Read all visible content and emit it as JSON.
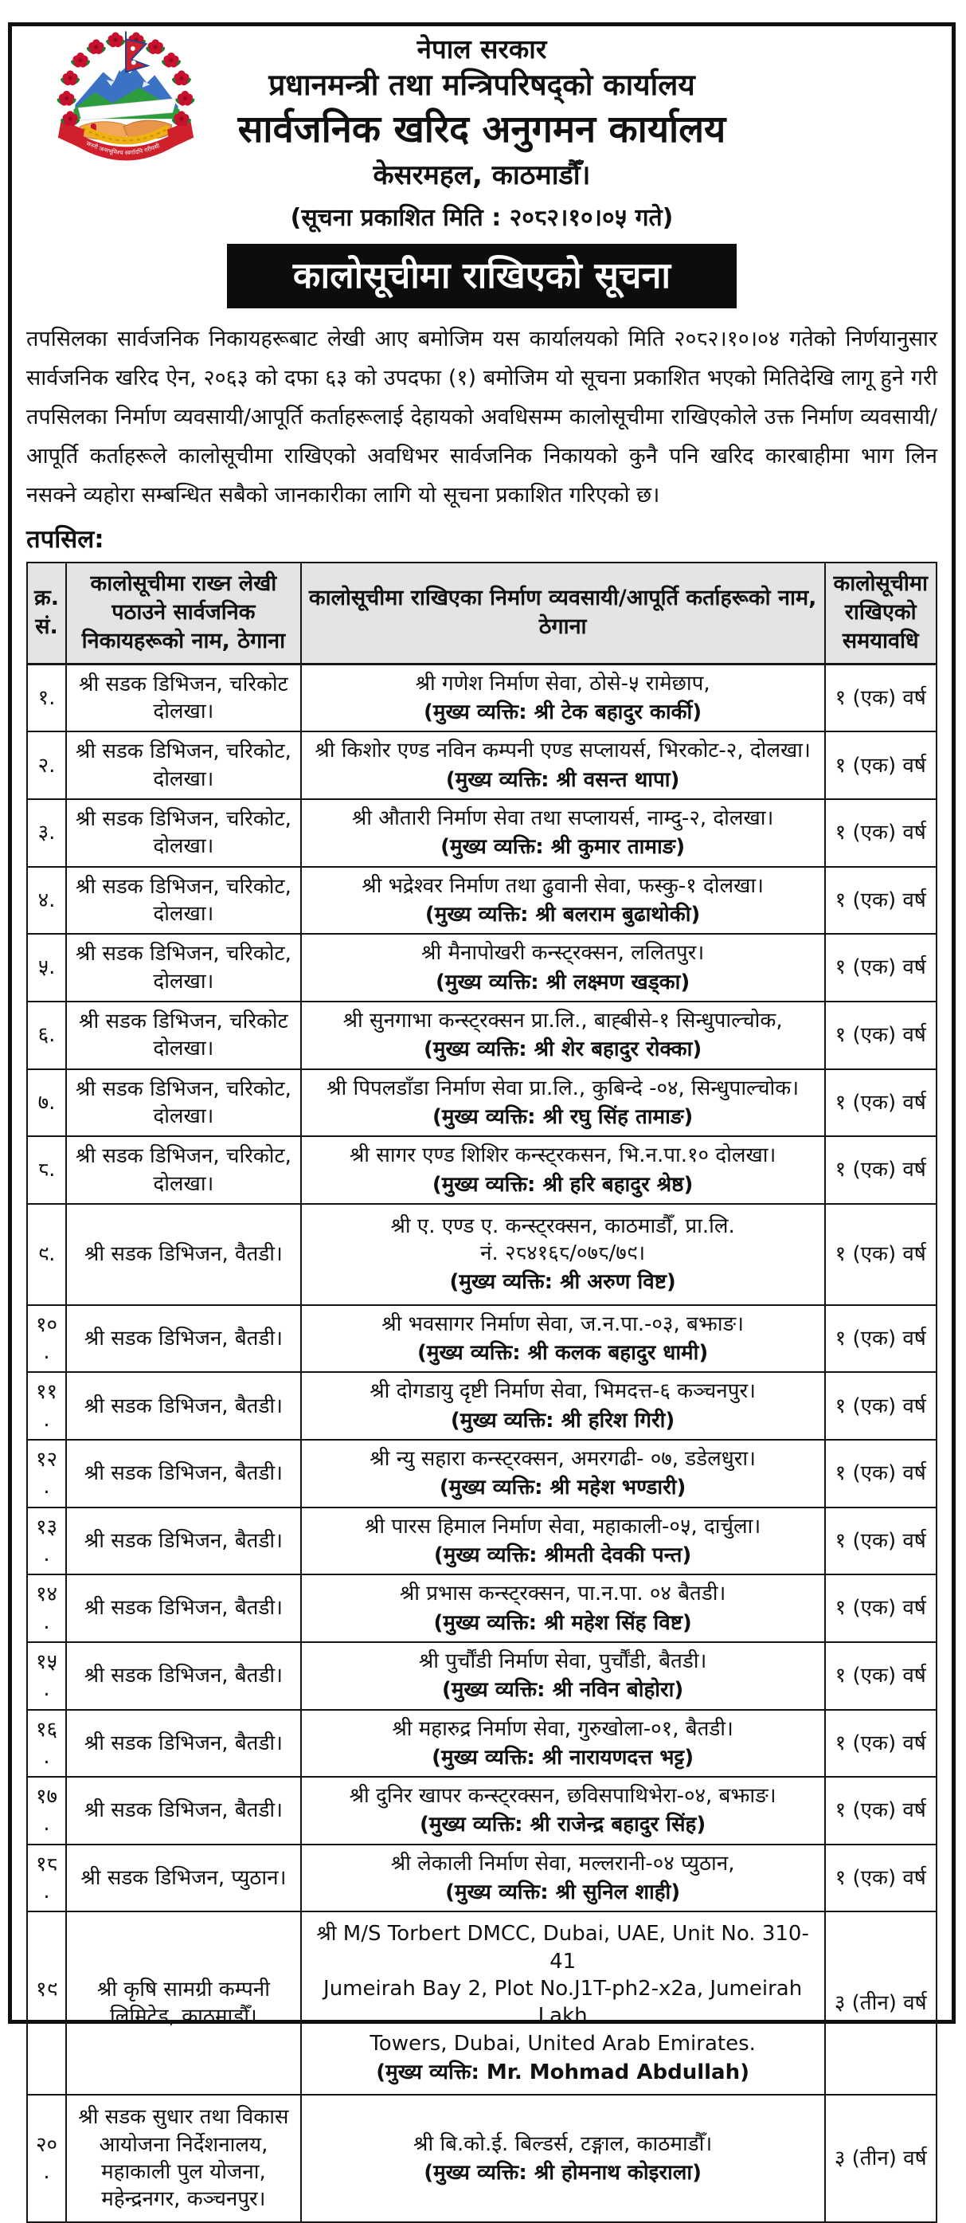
{
  "header": {
    "government": "नेपाल सरकार",
    "office_parent": "प्रधानमन्त्री तथा मन्त्रिपरिषद्को कार्यालय",
    "office": "सार्वजनिक खरिद अनुगमन कार्यालय",
    "address": "केसरमहल, काठमाडौँ।",
    "published_date_line": "(सूचना प्रकाशित मिति : २०८२।१०।०५ गते)",
    "emblem_motto": "जननी जन्मभूमिश्च स्वर्गादपि गरीयसी"
  },
  "notice": {
    "title": "कालोसूचीमा राखिएको सूचना",
    "body": "तपसिलका सार्वजनिक निकायहरूबाट लेखी आए बमोजिम यस कार्यालयको मिति २०८२।१०।०४ गतेको निर्णयानुसार सार्वजनिक खरिद ऐन, २०६३ को दफा ६३ को उपदफा (१) बमोजिम यो सूचना प्रकाशित भएको मितिदेखि लागू हुने गरी तपसिलका निर्माण व्यवसायी/आपूर्ति कर्ताहरूलाई देहायको अवधिसम्म कालोसूचीमा राखिएकोले उक्त निर्माण व्यवसायी/आपूर्ति कर्ताहरूले कालोसूचीमा राखिएको अवधिभर सार्वजनिक निकायको कुनै पनि खरिद कारबाहीमा भाग लिन नसक्ने व्यहोरा सम्बन्धित सबैको जानकारीका लागि यो सूचना प्रकाशित गरिएको छ।",
    "detail_label": "तपसिल:"
  },
  "table": {
    "headers": {
      "sn": "क्र. सं.",
      "agency": "कालोसूचीमा राख्न लेखी पठाउने सार्वजनिक निकायहरूको नाम, ठेगाना",
      "firm": "कालोसूचीमा राखिएका निर्माण व्यवसायी/आपूर्ति कर्ताहरूको नाम, ठेगाना",
      "duration": "कालोसूचीमा राखिएको समयावधि"
    },
    "rows": [
      {
        "sn": "१.",
        "agency": "श्री सडक डिभिजन, चरिकोट दोलखा।",
        "firm_lines": [
          "श्री गणेश निर्माण सेवा, ठोसे-५ रामेछाप,"
        ],
        "key_person": "(मुख्य व्यक्ति: श्री टेक बहादुर कार्की)",
        "duration": "१ (एक) वर्ष",
        "tall": false
      },
      {
        "sn": "२.",
        "agency": "श्री सडक डिभिजन, चरिकोट, दोलखा।",
        "firm_lines": [
          "श्री किशोर एण्ड नविन कम्पनी एण्ड सप्लायर्स, भिरकोट-२, दोलखा।"
        ],
        "key_person": "(मुख्य व्यक्ति: श्री वसन्त थापा)",
        "duration": "१ (एक) वर्ष",
        "tall": false
      },
      {
        "sn": "३.",
        "agency": "श्री सडक डिभिजन, चरिकोट, दोलखा।",
        "firm_lines": [
          "श्री औतारी निर्माण सेवा तथा सप्लायर्स, नाम्दु-२, दोलखा।"
        ],
        "key_person": "(मुख्य व्यक्ति: श्री कुमार तामाङ)",
        "duration": "१ (एक) वर्ष",
        "tall": false
      },
      {
        "sn": "४.",
        "agency": "श्री सडक डिभिजन, चरिकोट, दोलखा।",
        "firm_lines": [
          "श्री भद्रेश्वर निर्माण तथा ढुवानी सेवा, फस्कु-१ दोलखा।"
        ],
        "key_person": "(मुख्य व्यक्ति: श्री बलराम बुढाथोकी)",
        "duration": "१ (एक) वर्ष",
        "tall": false
      },
      {
        "sn": "५.",
        "agency": "श्री सडक डिभिजन, चरिकोट, दोलखा।",
        "firm_lines": [
          "श्री मैनापोखरी कन्स्ट्रक्सन, ललितपुर।"
        ],
        "key_person": "(मुख्य व्यक्ति: श्री लक्ष्मण खड्का)",
        "duration": "१ (एक) वर्ष",
        "tall": false
      },
      {
        "sn": "६.",
        "agency": "श्री सडक डिभिजन, चरिकोट दोलखा।",
        "firm_lines": [
          "श्री सुनगाभा कन्स्ट्रक्सन प्रा.लि., बाह्बीसे-१ सिन्धुपाल्चोक,"
        ],
        "key_person": "(मुख्य व्यक्ति: श्री शेर बहादुर रोक्का)",
        "duration": "१ (एक) वर्ष",
        "tall": false
      },
      {
        "sn": "७.",
        "agency": "श्री सडक डिभिजन, चरिकोट, दोलखा।",
        "firm_lines": [
          "श्री पिपलडाँडा निर्माण सेवा प्रा.लि., कुबिन्दे -०४, सिन्धुपाल्चोक।"
        ],
        "key_person": "(मुख्य व्यक्ति: श्री रघु सिंह तामाङ)",
        "duration": "१ (एक) वर्ष",
        "tall": false
      },
      {
        "sn": "८.",
        "agency": "श्री सडक डिभिजन, चरिकोट, दोलखा।",
        "firm_lines": [
          "श्री सागर एण्ड शिशिर कन्स्ट्रकसन, भि.न.पा.१० दोलखा।"
        ],
        "key_person": "(मुख्य व्यक्ति: श्री हरि बहादुर श्रेष्ठ)",
        "duration": "१ (एक) वर्ष",
        "tall": false
      },
      {
        "sn": "९.",
        "agency": "श्री सडक डिभिजन, वैतडी।",
        "firm_lines": [
          "श्री ए. एण्ड ए. कन्स्ट्रक्सन, काठमाडौँ, प्रा.लि.",
          "नं. २८४१६८/०७८/७९।"
        ],
        "key_person": "(मुख्य व्यक्ति: श्री अरुण विष्ट)",
        "duration": "१ (एक) वर्ष",
        "tall": true
      },
      {
        "sn": "१०.",
        "agency": "श्री सडक डिभिजन, बैतडी।",
        "firm_lines": [
          "श्री भवसागर निर्माण सेवा, ज.न.पा.-०३, बझाङ।"
        ],
        "key_person": "(मुख्य व्यक्ति: श्री कलक बहादुर धामी)",
        "duration": "१ (एक) वर्ष",
        "tall": false
      },
      {
        "sn": "११.",
        "agency": "श्री सडक डिभिजन, बैतडी।",
        "firm_lines": [
          "श्री दोगडायु दृष्टी निर्माण सेवा, भिमदत्त-६ कञ्चनपुर।"
        ],
        "key_person": "(मुख्य व्यक्ति: श्री हरिश गिरी)",
        "duration": "१ (एक) वर्ष",
        "tall": false
      },
      {
        "sn": "१२.",
        "agency": "श्री सडक डिभिजन, बैतडी।",
        "firm_lines": [
          "श्री न्यु सहारा कन्स्ट्रक्सन, अमरगढी- ०७, डडेलधुरा।"
        ],
        "key_person": "(मुख्य व्यक्ति: श्री महेश भण्डारी)",
        "duration": "१ (एक) वर्ष",
        "tall": false
      },
      {
        "sn": "१३.",
        "agency": "श्री सडक डिभिजन, बैतडी।",
        "firm_lines": [
          "श्री पारस हिमाल निर्माण सेवा, महाकाली-०५,  दार्चुला।"
        ],
        "key_person": "(मुख्य व्यक्ति: श्रीमती देवकी पन्त)",
        "duration": "१ (एक) वर्ष",
        "tall": false
      },
      {
        "sn": "१४.",
        "agency": "श्री सडक डिभिजन, बैतडी।",
        "firm_lines": [
          "श्री प्रभास कन्स्ट्रक्सन, पा.न.पा. ०४ बैतडी।"
        ],
        "key_person": "(मुख्य व्यक्ति: श्री महेश सिंह विष्ट)",
        "duration": "१ (एक) वर्ष",
        "tall": false
      },
      {
        "sn": "१५.",
        "agency": "श्री सडक डिभिजन, बैतडी।",
        "firm_lines": [
          "श्री पुर्चौंडी निर्माण सेवा, पुर्चौंडी, बैतडी।"
        ],
        "key_person": "(मुख्य व्यक्ति: श्री नविन बोहोरा)",
        "duration": "१ (एक) वर्ष",
        "tall": false
      },
      {
        "sn": "१६.",
        "agency": "श्री सडक डिभिजन, बैतडी।",
        "firm_lines": [
          "श्री महारुद्र निर्माण सेवा, गुरुखोला-०१, बैतडी।"
        ],
        "key_person": "(मुख्य व्यक्ति: श्री नारायणदत्त भट्ट)",
        "duration": "१ (एक) वर्ष",
        "tall": false
      },
      {
        "sn": "१७.",
        "agency": "श्री सडक डिभिजन, बैतडी।",
        "firm_lines": [
          "श्री दुनिर खापर कन्स्ट्रक्सन, छविसपाथिभेरा-०४, बझाङ।"
        ],
        "key_person": "(मुख्य व्यक्ति: श्री राजेन्द्र बहादुर सिंह)",
        "duration": "१ (एक) वर्ष",
        "tall": false
      },
      {
        "sn": "१८.",
        "agency": "श्री सडक डिभिजन, प्युठान।",
        "firm_lines": [
          "श्री लेकाली निर्माण सेवा, मल्लरानी-०४ प्युठान,"
        ],
        "key_person": "(मुख्य व्यक्ति: श्री सुनिल शाही)",
        "duration": "१ (एक) वर्ष",
        "tall": false
      },
      {
        "sn": "१९.",
        "agency": "श्री कृषि सामग्री कम्पनी लिमिटेड, काठमाडौँ।",
        "firm_lines": [
          "श्री M/S Torbert DMCC, Dubai, UAE, Unit No. 310-41",
          "Jumeirah Bay 2, Plot No.J1T-ph2-x2a, Jumeirah Lakh",
          "Towers, Dubai, United Arab Emirates."
        ],
        "key_person": "(मुख्य व्यक्ति: Mr. Mohmad Abdullah)",
        "duration": "३ (तीन) वर्ष",
        "tall": true
      },
      {
        "sn": "२०.",
        "agency": "श्री सडक सुधार तथा विकास आयोजना निर्देशनालय, महाकाली पुल योजना, महेन्द्रनगर, कञ्चनपुर।",
        "firm_lines": [
          "श्री  बि.को.ई. बिल्डर्स, टङ्गाल, काठमाडौँ।"
        ],
        "key_person": "(मुख्य व्यक्ति: श्री होमनाथ कोइराला)",
        "duration": "३ (तीन) वर्ष",
        "tall": true
      }
    ]
  }
}
